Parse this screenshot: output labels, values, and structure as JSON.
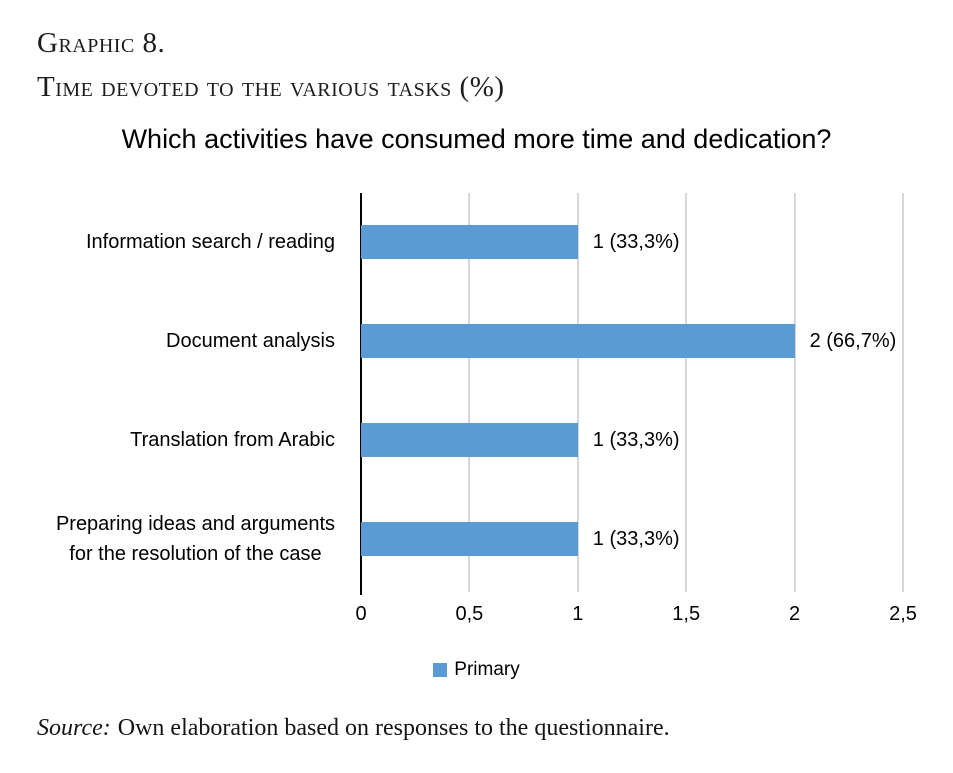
{
  "figure": {
    "heading_line1": "Graphic 8.",
    "heading_line2": "Time devoted to the various tasks (%)",
    "source_label": "Source:",
    "source_text": "Own elaboration based on responses to the questionnaire."
  },
  "chart_data": {
    "type": "bar",
    "orientation": "horizontal",
    "title": "Which activities have consumed more time and dedication?",
    "categories": [
      "Information search / reading",
      "Document analysis",
      "Translation from Arabic",
      "Preparing ideas and arguments\nfor the resolution of the case"
    ],
    "series": [
      {
        "name": "Primary",
        "values": [
          1,
          2,
          1,
          1
        ]
      }
    ],
    "value_labels": [
      "1 (33,3%)",
      "2 (66,7%)",
      "1 (33,3%)",
      "1 (33,3%)"
    ],
    "x_ticks": [
      "0",
      "0,5",
      "1",
      "1,5",
      "2",
      "2,5"
    ],
    "x_tick_values": [
      0,
      0.5,
      1,
      1.5,
      2,
      2.5
    ],
    "xlim": [
      0,
      2.5
    ],
    "grid": true,
    "legend": {
      "position": "bottom"
    },
    "colors": {
      "bar": "#5B9BD5",
      "gridline": "#D6D6D6",
      "axis": "#000000"
    }
  }
}
